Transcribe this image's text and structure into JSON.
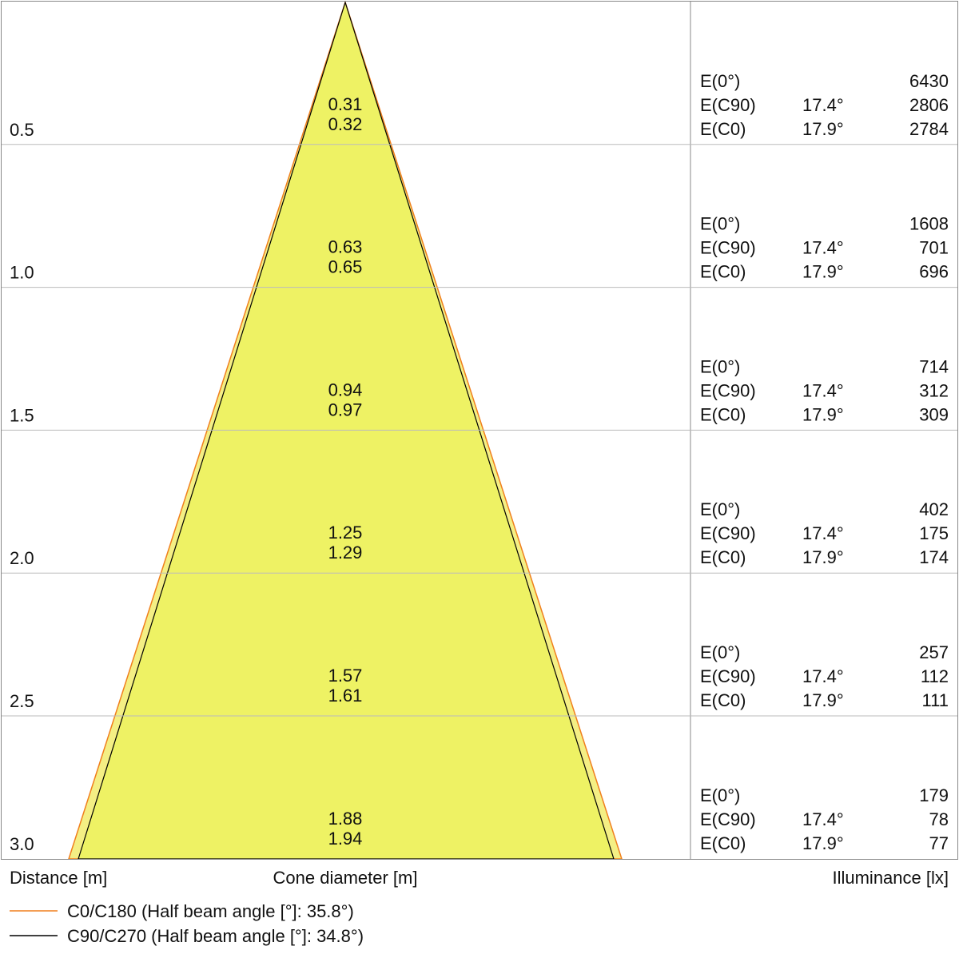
{
  "rows": [
    {
      "distance": "0.5",
      "diameter_c90": "0.31",
      "diameter_c0": "0.32",
      "e0": {
        "label": "E(0°)",
        "value": "6430"
      },
      "ec90": {
        "label": "E(C90)",
        "angle": "17.4°",
        "value": "2806"
      },
      "ec0": {
        "label": "E(C0)",
        "angle": "17.9°",
        "value": "2784"
      }
    },
    {
      "distance": "1.0",
      "diameter_c90": "0.63",
      "diameter_c0": "0.65",
      "e0": {
        "label": "E(0°)",
        "value": "1608"
      },
      "ec90": {
        "label": "E(C90)",
        "angle": "17.4°",
        "value": "701"
      },
      "ec0": {
        "label": "E(C0)",
        "angle": "17.9°",
        "value": "696"
      }
    },
    {
      "distance": "1.5",
      "diameter_c90": "0.94",
      "diameter_c0": "0.97",
      "e0": {
        "label": "E(0°)",
        "value": "714"
      },
      "ec90": {
        "label": "E(C90)",
        "angle": "17.4°",
        "value": "312"
      },
      "ec0": {
        "label": "E(C0)",
        "angle": "17.9°",
        "value": "309"
      }
    },
    {
      "distance": "2.0",
      "diameter_c90": "1.25",
      "diameter_c0": "1.29",
      "e0": {
        "label": "E(0°)",
        "value": "402"
      },
      "ec90": {
        "label": "E(C90)",
        "angle": "17.4°",
        "value": "175"
      },
      "ec0": {
        "label": "E(C0)",
        "angle": "17.9°",
        "value": "174"
      }
    },
    {
      "distance": "2.5",
      "diameter_c90": "1.57",
      "diameter_c0": "1.61",
      "e0": {
        "label": "E(0°)",
        "value": "257"
      },
      "ec90": {
        "label": "E(C90)",
        "angle": "17.4°",
        "value": "112"
      },
      "ec0": {
        "label": "E(C0)",
        "angle": "17.9°",
        "value": "111"
      }
    },
    {
      "distance": "3.0",
      "diameter_c90": "1.88",
      "diameter_c0": "1.94",
      "e0": {
        "label": "E(0°)",
        "value": "179"
      },
      "ec90": {
        "label": "E(C90)",
        "angle": "17.4°",
        "value": "78"
      },
      "ec0": {
        "label": "E(C0)",
        "angle": "17.9°",
        "value": "77"
      }
    }
  ],
  "distance_label": "Distance [m]",
  "cone_label": "Cone diameter [m]",
  "illuminance_label": "Illuminance [lx]",
  "legend": [
    {
      "label": "C0/C180 (Half beam angle [°]: 35.8°)",
      "color": "#f07f1d"
    },
    {
      "label": "C90/C270 (Half beam angle [°]: 34.8°)",
      "color": "#000000"
    }
  ]
}
